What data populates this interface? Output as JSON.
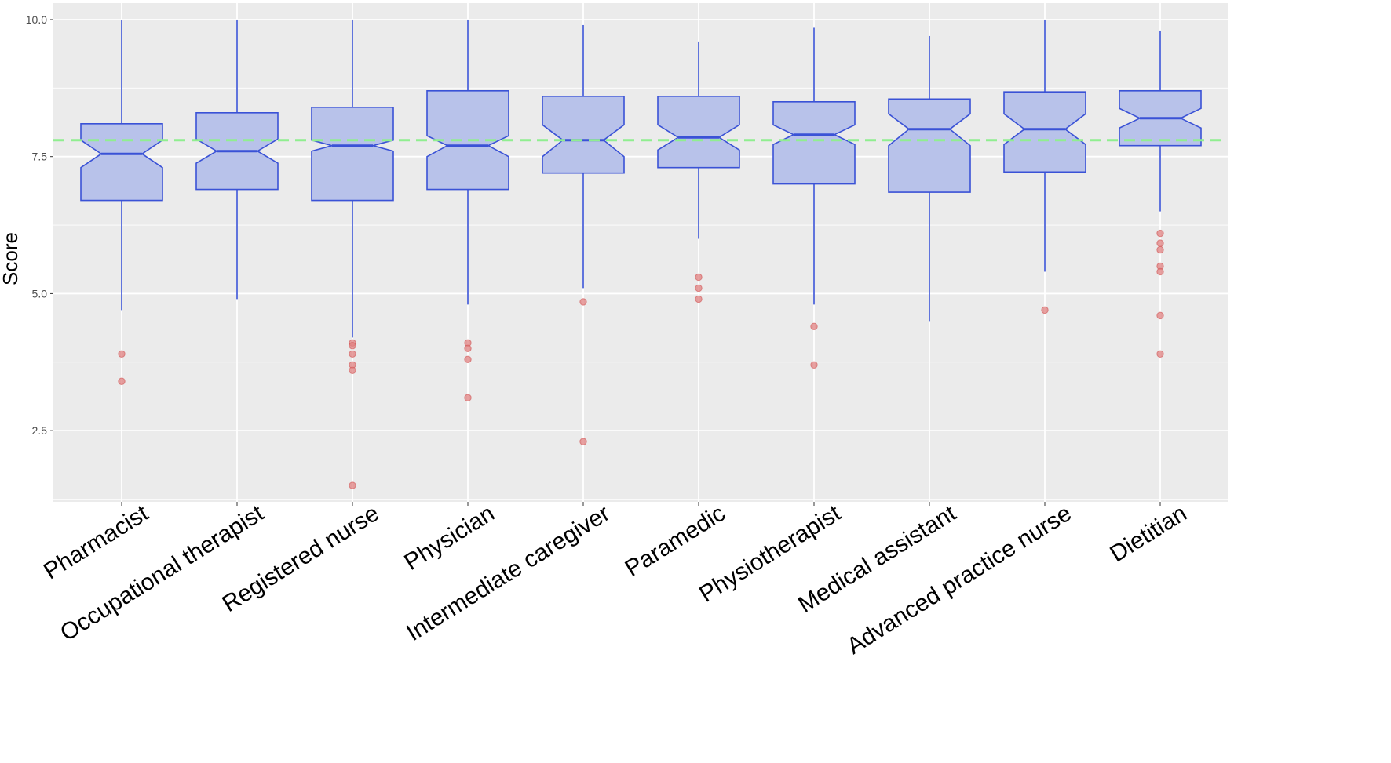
{
  "chart_data": {
    "type": "boxplot",
    "notched": true,
    "title": "",
    "xlabel": "",
    "ylabel": "Score",
    "ylim": [
      1.2,
      10.3
    ],
    "yticks": [
      2.5,
      5.0,
      7.5,
      10.0
    ],
    "ytick_labels": [
      "2.5",
      "5.0",
      "7.5",
      "10.0"
    ],
    "grid": true,
    "reference_line": {
      "value": 7.8,
      "style": "dashed",
      "color": "#90ee90"
    },
    "colors": {
      "panel_background": "#ebebeb",
      "grid": "#ffffff",
      "box_fill": "#b8c2ea",
      "box_stroke": "#3a52d6",
      "outlier": "#e08080",
      "outlier_stroke": "#d05050"
    },
    "categories": [
      "Pharmacist",
      "Occupational therapist",
      "Registered nurse",
      "Physician",
      "Intermediate caregiver",
      "Paramedic",
      "Physiotherapist",
      "Medical assistant",
      "Advanced practice nurse",
      "Dietitian"
    ],
    "boxes": [
      {
        "q1": 6.7,
        "median": 7.55,
        "q3": 8.1,
        "notch_low": 7.3,
        "notch_high": 7.8,
        "whisker_low": 4.7,
        "whisker_high": 10.0,
        "outliers": [
          3.9,
          3.4
        ]
      },
      {
        "q1": 6.9,
        "median": 7.6,
        "q3": 8.3,
        "notch_low": 7.38,
        "notch_high": 7.82,
        "whisker_low": 4.9,
        "whisker_high": 10.0,
        "outliers": []
      },
      {
        "q1": 6.7,
        "median": 7.7,
        "q3": 8.4,
        "notch_low": 7.6,
        "notch_high": 7.8,
        "whisker_low": 4.2,
        "whisker_high": 10.0,
        "outliers": [
          4.1,
          4.05,
          3.9,
          3.7,
          3.6,
          1.5
        ]
      },
      {
        "q1": 6.9,
        "median": 7.7,
        "q3": 8.7,
        "notch_low": 7.5,
        "notch_high": 7.88,
        "whisker_low": 4.8,
        "whisker_high": 10.0,
        "outliers": [
          4.1,
          4.0,
          3.8,
          3.1
        ]
      },
      {
        "q1": 7.2,
        "median": 7.8,
        "q3": 8.6,
        "notch_low": 7.5,
        "notch_high": 8.08,
        "whisker_low": 5.1,
        "whisker_high": 9.9,
        "outliers": [
          4.85,
          2.3
        ]
      },
      {
        "q1": 7.3,
        "median": 7.85,
        "q3": 8.6,
        "notch_low": 7.62,
        "notch_high": 8.08,
        "whisker_low": 6.0,
        "whisker_high": 9.6,
        "outliers": [
          5.3,
          5.1,
          4.9
        ]
      },
      {
        "q1": 7.0,
        "median": 7.9,
        "q3": 8.5,
        "notch_low": 7.72,
        "notch_high": 8.08,
        "whisker_low": 4.8,
        "whisker_high": 9.85,
        "outliers": [
          4.4,
          3.7
        ]
      },
      {
        "q1": 6.85,
        "median": 8.0,
        "q3": 8.55,
        "notch_low": 7.7,
        "notch_high": 8.28,
        "whisker_low": 4.5,
        "whisker_high": 9.7,
        "outliers": []
      },
      {
        "q1": 7.22,
        "median": 8.0,
        "q3": 8.68,
        "notch_low": 7.72,
        "notch_high": 8.28,
        "whisker_low": 5.4,
        "whisker_high": 10.0,
        "outliers": [
          4.7
        ]
      },
      {
        "q1": 7.7,
        "median": 8.2,
        "q3": 8.7,
        "notch_low": 8.02,
        "notch_high": 8.38,
        "whisker_low": 6.5,
        "whisker_high": 9.8,
        "outliers": [
          6.1,
          5.92,
          5.8,
          5.5,
          5.4,
          4.6,
          3.9
        ]
      }
    ]
  }
}
